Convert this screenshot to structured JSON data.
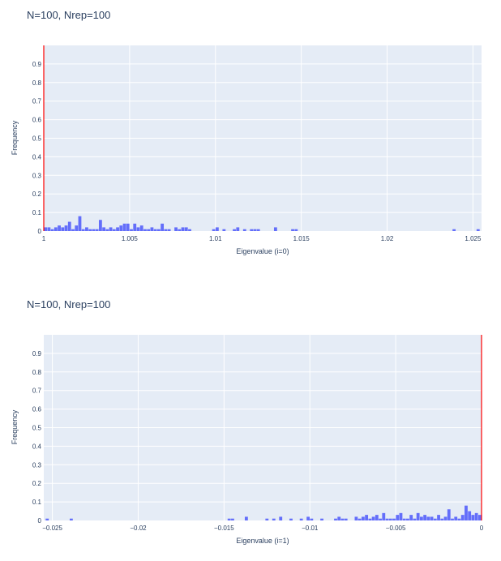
{
  "chart_data": [
    {
      "type": "bar",
      "title": "N=100, Nrep=100",
      "xlabel": "Eigenvalue (i=0)",
      "ylabel": "Frequency",
      "xlim": [
        1.0,
        1.0255
      ],
      "ylim": [
        0,
        1
      ],
      "xticks": [
        1,
        1.005,
        1.01,
        1.015,
        1.02,
        1.025
      ],
      "xtick_labels": [
        "1",
        "1.005",
        "1.01",
        "1.015",
        "1.02",
        "1.025"
      ],
      "yticks": [
        0,
        0.1,
        0.2,
        0.3,
        0.4,
        0.5,
        0.6,
        0.7,
        0.8,
        0.9
      ],
      "ytick_labels": [
        "0",
        "0.1",
        "0.2",
        "0.3",
        "0.4",
        "0.5",
        "0.6",
        "0.7",
        "0.8",
        "0.9"
      ],
      "bar_color": "#636efa",
      "vline": {
        "x": 1.0,
        "color": "#ff0000"
      },
      "grid": true,
      "background": "#e5ecf6",
      "x": [
        1.0001,
        1.0003,
        1.0005,
        1.0007,
        1.0009,
        1.0011,
        1.0013,
        1.0015,
        1.0017,
        1.0019,
        1.0021,
        1.0023,
        1.0025,
        1.0027,
        1.0029,
        1.0031,
        1.0033,
        1.0035,
        1.0037,
        1.0039,
        1.0041,
        1.0043,
        1.0045,
        1.0047,
        1.0049,
        1.0051,
        1.0053,
        1.0055,
        1.0057,
        1.0059,
        1.0061,
        1.0063,
        1.0065,
        1.0067,
        1.0069,
        1.0071,
        1.0073,
        1.0077,
        1.0079,
        1.0081,
        1.0083,
        1.0085,
        1.0099,
        1.0101,
        1.0105,
        1.0111,
        1.0113,
        1.0117,
        1.0121,
        1.0123,
        1.0125,
        1.0135,
        1.0145,
        1.0147,
        1.0239,
        1.0253
      ],
      "values": [
        0.02,
        0.02,
        0.01,
        0.02,
        0.03,
        0.02,
        0.03,
        0.05,
        0.01,
        0.03,
        0.08,
        0.01,
        0.02,
        0.01,
        0.01,
        0.01,
        0.06,
        0.02,
        0.01,
        0.02,
        0.01,
        0.02,
        0.03,
        0.04,
        0.04,
        0.01,
        0.04,
        0.02,
        0.03,
        0.01,
        0.01,
        0.02,
        0.01,
        0.01,
        0.04,
        0.01,
        0.01,
        0.02,
        0.01,
        0.02,
        0.02,
        0.01,
        0.01,
        0.02,
        0.01,
        0.01,
        0.02,
        0.01,
        0.01,
        0.01,
        0.01,
        0.02,
        0.01,
        0.01,
        0.01,
        0.01
      ]
    },
    {
      "type": "bar",
      "title": "N=100, Nrep=100",
      "xlabel": "Eigenvalue (i=1)",
      "ylabel": "Frequency",
      "xlim": [
        -0.0255,
        0.0
      ],
      "ylim": [
        0,
        1
      ],
      "xticks": [
        -0.025,
        -0.02,
        -0.015,
        -0.01,
        -0.005,
        0
      ],
      "xtick_labels": [
        "−0.025",
        "−0.02",
        "−0.015",
        "−0.01",
        "−0.005",
        "0"
      ],
      "yticks": [
        0,
        0.1,
        0.2,
        0.3,
        0.4,
        0.5,
        0.6,
        0.7,
        0.8,
        0.9
      ],
      "ytick_labels": [
        "0",
        "0.1",
        "0.2",
        "0.3",
        "0.4",
        "0.5",
        "0.6",
        "0.7",
        "0.8",
        "0.9"
      ],
      "bar_color": "#636efa",
      "vline": {
        "x": 0.0,
        "color": "#ff0000"
      },
      "grid": true,
      "background": "#e5ecf6",
      "x": [
        -0.0253,
        -0.0239,
        -0.0147,
        -0.0145,
        -0.0137,
        -0.0125,
        -0.0121,
        -0.0117,
        -0.0111,
        -0.0105,
        -0.0101,
        -0.0099,
        -0.0093,
        -0.0085,
        -0.0083,
        -0.0081,
        -0.0079,
        -0.0073,
        -0.0071,
        -0.0069,
        -0.0067,
        -0.0065,
        -0.0063,
        -0.0061,
        -0.0059,
        -0.0057,
        -0.0055,
        -0.0053,
        -0.0051,
        -0.0049,
        -0.0047,
        -0.0045,
        -0.0043,
        -0.0041,
        -0.0039,
        -0.0037,
        -0.0035,
        -0.0033,
        -0.0031,
        -0.0029,
        -0.0027,
        -0.0025,
        -0.0023,
        -0.0021,
        -0.0019,
        -0.0017,
        -0.0015,
        -0.0013,
        -0.0011,
        -0.0009,
        -0.0007,
        -0.0005,
        -0.0003,
        -0.0001
      ],
      "values": [
        0.01,
        0.01,
        0.01,
        0.01,
        0.02,
        0.01,
        0.01,
        0.02,
        0.01,
        0.01,
        0.02,
        0.01,
        0.01,
        0.01,
        0.02,
        0.01,
        0.01,
        0.02,
        0.01,
        0.02,
        0.03,
        0.01,
        0.02,
        0.03,
        0.01,
        0.04,
        0.01,
        0.01,
        0.01,
        0.03,
        0.04,
        0.01,
        0.01,
        0.03,
        0.01,
        0.04,
        0.02,
        0.03,
        0.02,
        0.02,
        0.01,
        0.03,
        0.01,
        0.02,
        0.06,
        0.01,
        0.02,
        0.01,
        0.03,
        0.08,
        0.05,
        0.03,
        0.04,
        0.03
      ]
    }
  ]
}
